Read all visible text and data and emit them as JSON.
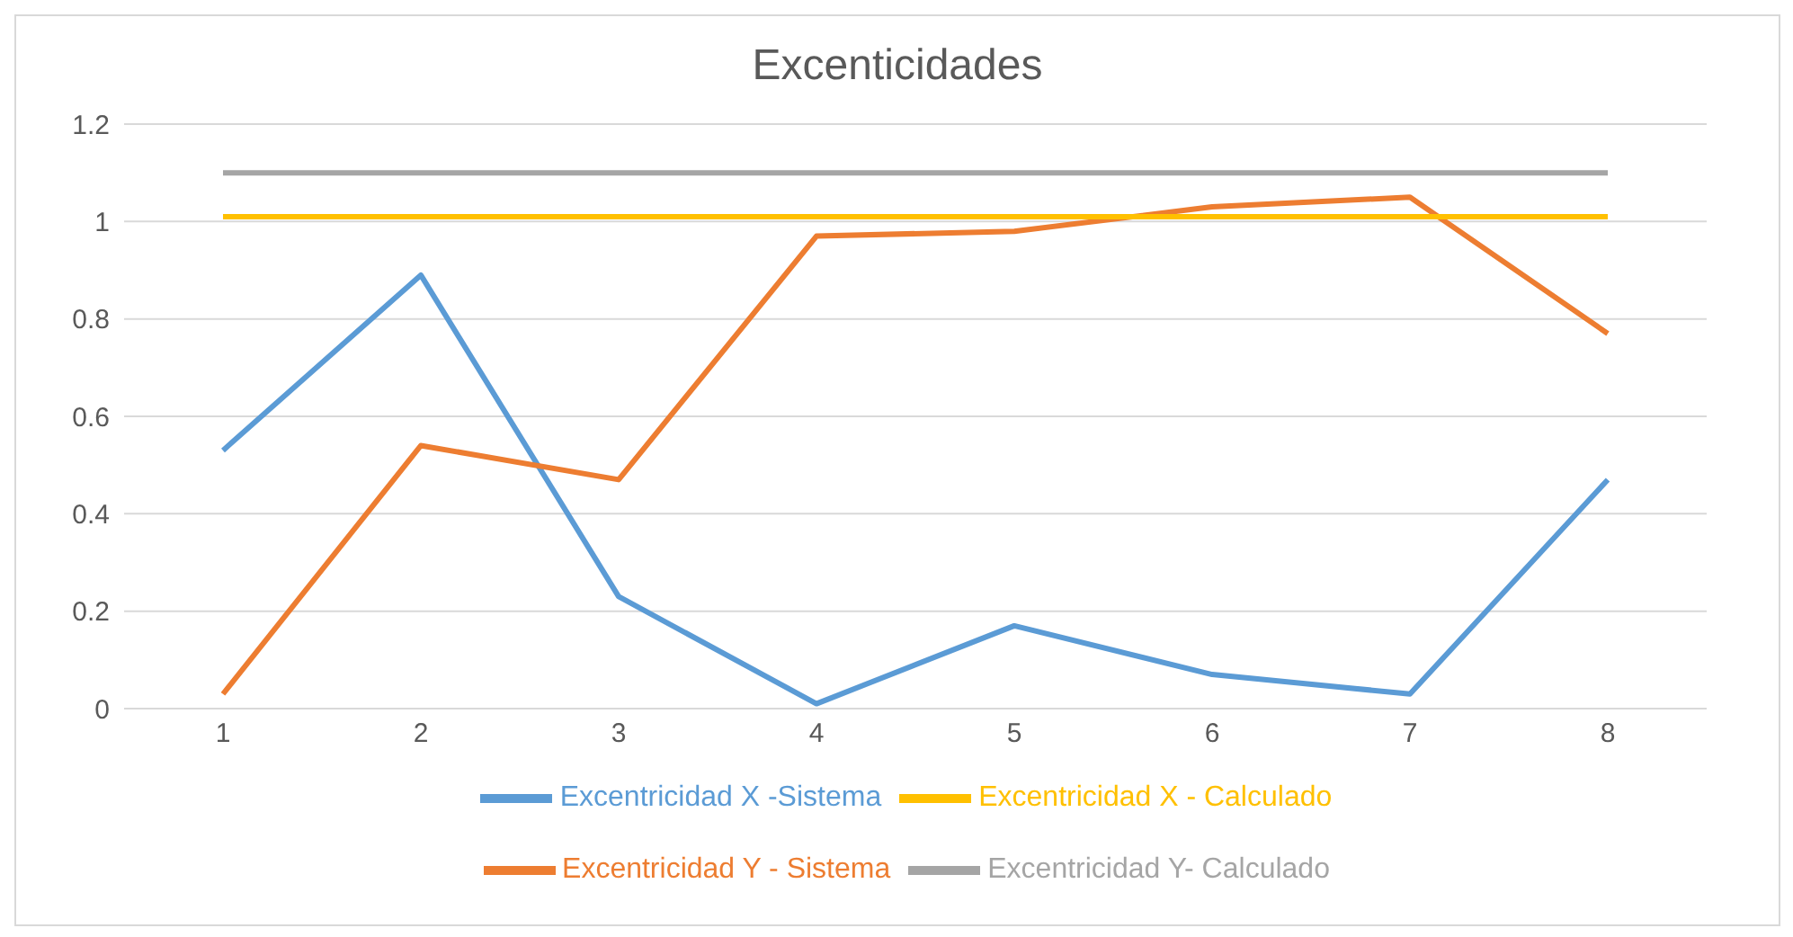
{
  "chart_data": {
    "type": "line",
    "title": "Excenticidades",
    "categories": [
      "1",
      "2",
      "3",
      "4",
      "5",
      "6",
      "7",
      "8"
    ],
    "series": [
      {
        "name": "Excentricidad  X -Sistema",
        "color": "#5b9bd5",
        "values": [
          0.53,
          0.89,
          0.23,
          0.01,
          0.17,
          0.07,
          0.03,
          0.47
        ]
      },
      {
        "name": "Excentricidad Y - Sistema",
        "color": "#ed7d31",
        "values": [
          0.03,
          0.54,
          0.47,
          0.97,
          0.98,
          1.03,
          1.05,
          0.77
        ]
      },
      {
        "name": "Excentricidad Y- Calculado",
        "color": "#a5a5a5",
        "values": [
          1.1,
          1.1,
          1.1,
          1.1,
          1.1,
          1.1,
          1.1,
          1.1
        ]
      },
      {
        "name": "Excentricidad X - Calculado",
        "color": "#ffc000",
        "values": [
          1.01,
          1.01,
          1.01,
          1.01,
          1.01,
          1.01,
          1.01,
          1.01
        ]
      }
    ],
    "ylim": [
      0,
      1.2
    ],
    "yticks": [
      0,
      0.2,
      0.4,
      0.6,
      0.8,
      1,
      1.2
    ],
    "grid": "y",
    "legend": "bottom",
    "marker": "none",
    "line_style": "solid"
  }
}
